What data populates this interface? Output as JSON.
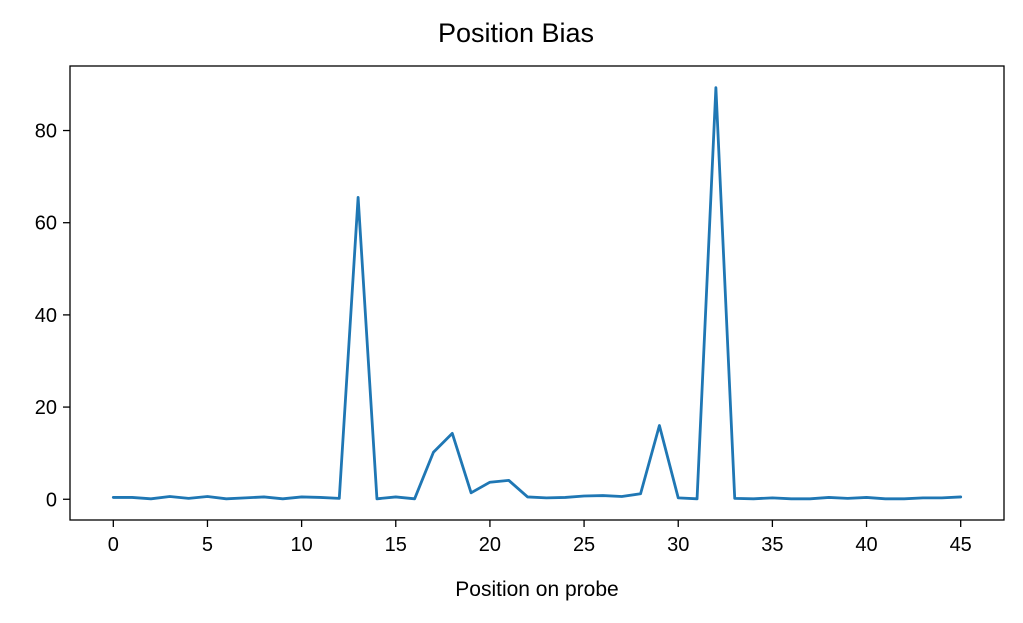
{
  "chart_data": {
    "type": "line",
    "title": "Position Bias",
    "xlabel": "Position on probe",
    "ylabel": "",
    "xlim": [
      -2.3,
      47.3
    ],
    "ylim": [
      -4.5,
      94
    ],
    "xticks": [
      0,
      5,
      10,
      15,
      20,
      25,
      30,
      35,
      40,
      45
    ],
    "yticks": [
      0,
      20,
      40,
      60,
      80
    ],
    "grid": false,
    "legend": "none",
    "series": [
      {
        "color": "#1f77b4",
        "x": [
          0,
          1,
          2,
          3,
          4,
          5,
          6,
          7,
          8,
          9,
          10,
          11,
          12,
          13,
          14,
          15,
          16,
          17,
          18,
          19,
          20,
          21,
          22,
          23,
          24,
          25,
          26,
          27,
          28,
          29,
          30,
          31,
          32,
          33,
          34,
          35,
          36,
          37,
          38,
          39,
          40,
          41,
          42,
          43,
          44,
          45
        ],
        "y": [
          0.4,
          0.4,
          0.1,
          0.6,
          0.2,
          0.6,
          0.1,
          0.3,
          0.5,
          0.1,
          0.5,
          0.4,
          0.2,
          65.5,
          0.1,
          0.5,
          0.1,
          10.2,
          14.3,
          1.4,
          3.7,
          4.1,
          0.5,
          0.3,
          0.4,
          0.7,
          0.8,
          0.6,
          1.2,
          16.0,
          0.3,
          0.1,
          89.3,
          0.2,
          0.1,
          0.3,
          0.1,
          0.1,
          0.4,
          0.2,
          0.4,
          0.1,
          0.1,
          0.3,
          0.3,
          0.5
        ]
      }
    ]
  }
}
